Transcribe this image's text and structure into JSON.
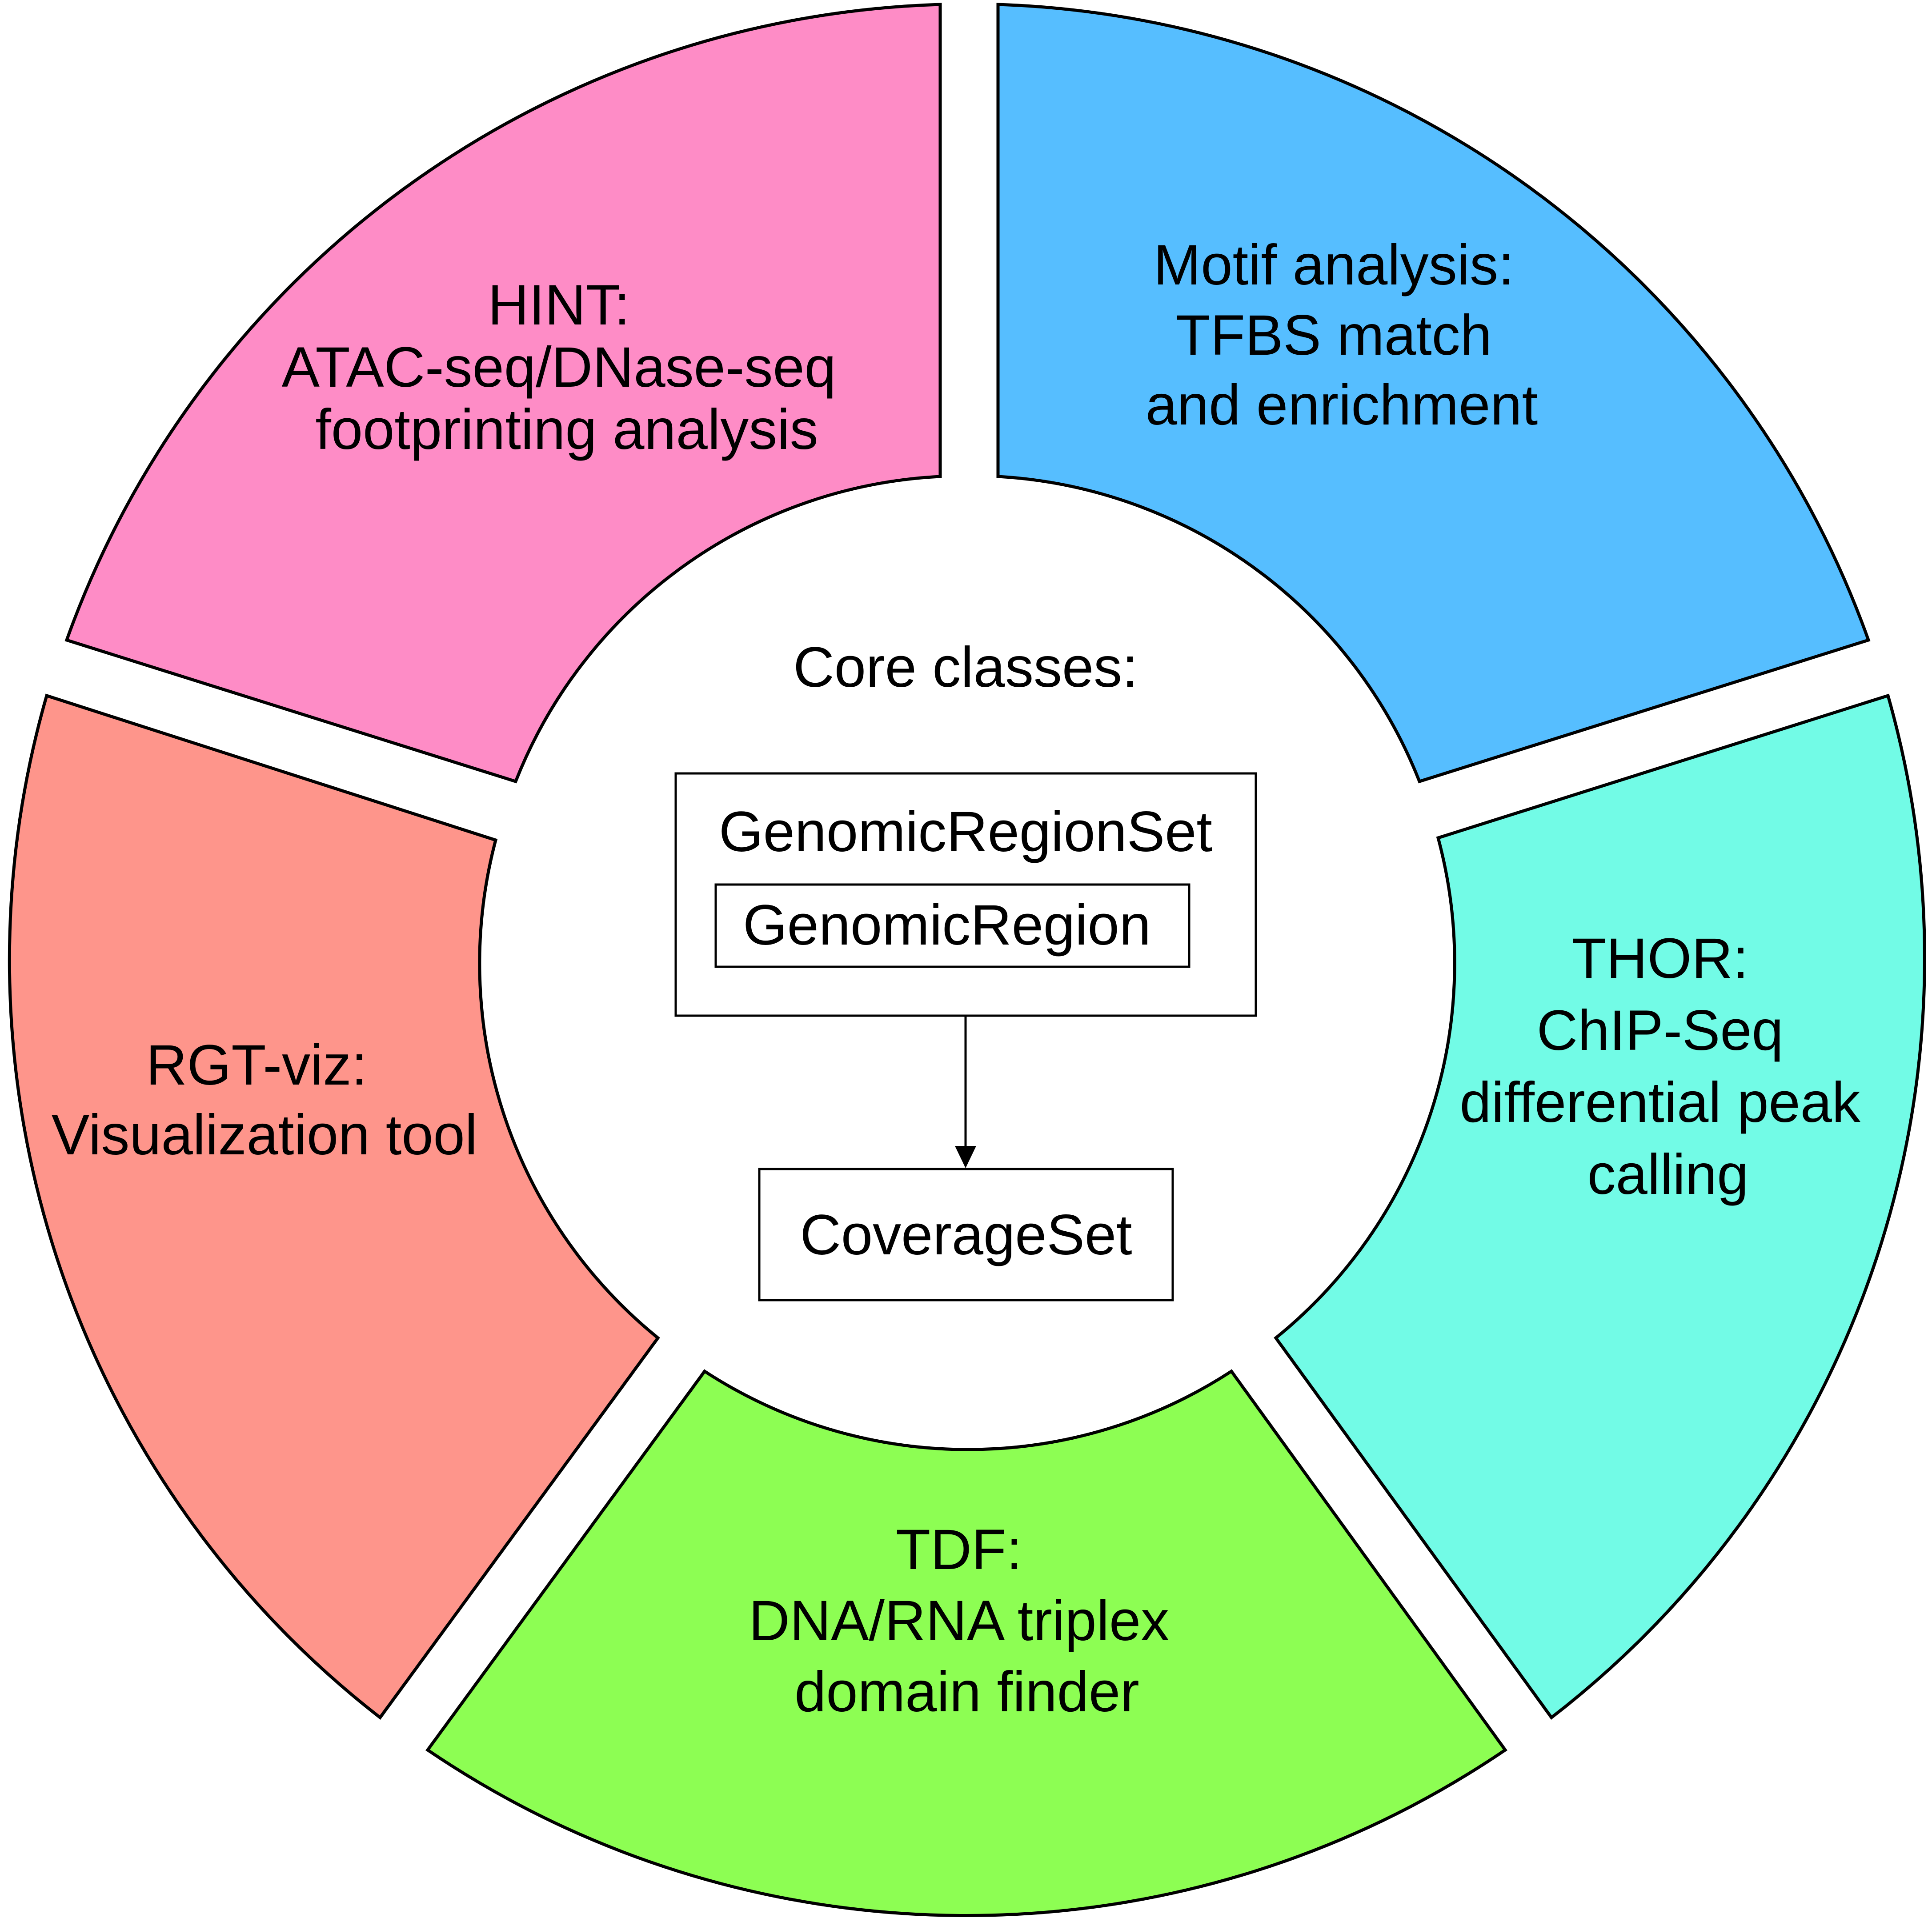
{
  "segments": [
    {
      "id": "hint",
      "color": "#fe8cc6",
      "lines": [
        "HINT:",
        "ATAC-seq/DNase-seq",
        "footprinting analysis"
      ]
    },
    {
      "id": "motif",
      "color": "#56beff",
      "lines": [
        "Motif analysis:",
        "TFBS match",
        "and enrichment"
      ]
    },
    {
      "id": "thor",
      "color": "#72fbe6",
      "lines": [
        "THOR:",
        "ChIP-Seq",
        "differential peak",
        "calling"
      ]
    },
    {
      "id": "tdf",
      "color": "#8dfe53",
      "lines": [
        "TDF:",
        "DNA/RNA triplex",
        "domain finder"
      ]
    },
    {
      "id": "rgtviz",
      "color": "#fe958b",
      "lines": [
        "RGT-viz:",
        "Visualization tool"
      ]
    }
  ],
  "core": {
    "title": "Core classes:",
    "outer_box_label": "GenomicRegionSet",
    "inner_box_label": "GenomicRegion",
    "target_box_label": "CoverageSet"
  }
}
